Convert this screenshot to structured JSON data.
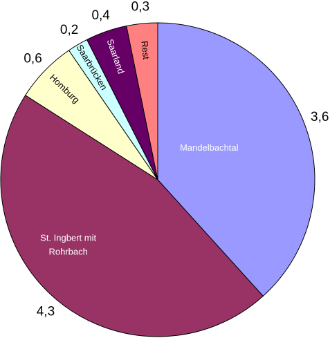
{
  "chart_data": {
    "type": "pie",
    "categories": [
      "Mandelbachtal",
      "St. Ingbert mit Rohrbach",
      "Homburg",
      "Saarbrücken",
      "Saarland",
      "Rest"
    ],
    "values": [
      3.6,
      4.3,
      0.6,
      0.2,
      0.4,
      0.3
    ],
    "value_labels": [
      "3,6",
      "4,3",
      "0,6",
      "0,2",
      "0,4",
      "0,3"
    ],
    "colors": [
      "#9999ff",
      "#993366",
      "#ffffcc",
      "#ccffff",
      "#660066",
      "#ff8080"
    ]
  }
}
